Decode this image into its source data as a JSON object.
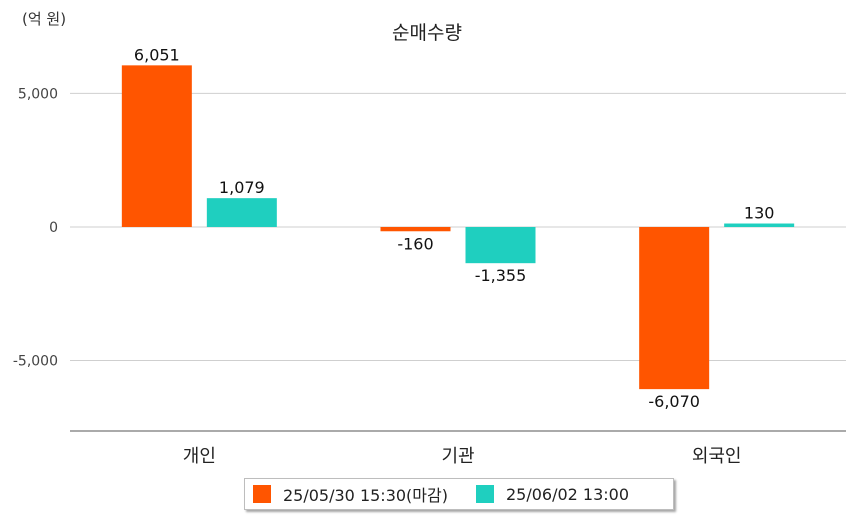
{
  "unit_label": "(억 원)",
  "chart_data": {
    "type": "bar",
    "title": "순매수량",
    "xlabel": "",
    "ylabel": "",
    "categories": [
      "개인",
      "기관",
      "외국인"
    ],
    "series": [
      {
        "name": "25/05/30 15:30(마감)",
        "color": "#FF5500",
        "values": [
          6051,
          -160,
          -6070
        ],
        "labels": [
          "6,051",
          "-160",
          "-6,070"
        ]
      },
      {
        "name": "25/06/02 13:00",
        "color": "#1FCFBF",
        "values": [
          1079,
          -1355,
          130
        ],
        "labels": [
          "1,079",
          "-1,355",
          "130"
        ]
      }
    ],
    "ylim": [
      -7600,
      7000
    ],
    "yticks": [
      5000,
      0,
      -5000
    ],
    "ytick_labels": [
      "5,000",
      "0",
      "-5,000"
    ],
    "grid": true,
    "legend_position": "bottom"
  }
}
